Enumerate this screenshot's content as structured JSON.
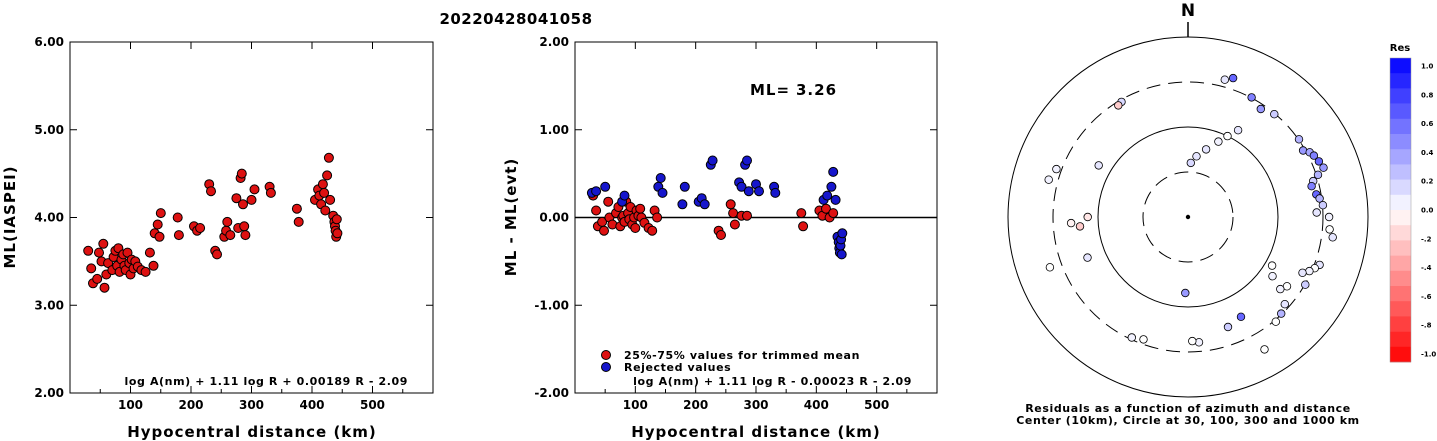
{
  "title": "20220428041058",
  "colors": {
    "used": "#dd1111",
    "rejected": "#1616cc",
    "axis": "#000000"
  },
  "chart_data": [
    {
      "type": "scatter",
      "xlabel": "Hypocentral distance (km)",
      "ylabel": "ML(IASPEI)",
      "xlim": [
        0,
        600
      ],
      "ylim": [
        2.0,
        6.0
      ],
      "xticks": [
        "100",
        "200",
        "300",
        "400",
        "500"
      ],
      "yticks": [
        "2.00",
        "3.00",
        "4.00",
        "5.00",
        "6.00"
      ],
      "formula": "log A(nm) + 1.11 log R + 0.00189 R - 2.09",
      "points": [
        [
          30,
          3.62
        ],
        [
          35,
          3.42
        ],
        [
          38,
          3.25
        ],
        [
          45,
          3.3
        ],
        [
          48,
          3.6
        ],
        [
          52,
          3.5
        ],
        [
          55,
          3.7
        ],
        [
          57,
          3.2
        ],
        [
          60,
          3.35
        ],
        [
          63,
          3.48
        ],
        [
          70,
          3.4
        ],
        [
          72,
          3.55
        ],
        [
          75,
          3.62
        ],
        [
          78,
          3.45
        ],
        [
          80,
          3.65
        ],
        [
          82,
          3.38
        ],
        [
          85,
          3.52
        ],
        [
          88,
          3.58
        ],
        [
          90,
          3.45
        ],
        [
          92,
          3.4
        ],
        [
          95,
          3.6
        ],
        [
          98,
          3.48
        ],
        [
          100,
          3.35
        ],
        [
          102,
          3.52
        ],
        [
          105,
          3.42
        ],
        [
          108,
          3.5
        ],
        [
          112,
          3.44
        ],
        [
          118,
          3.4
        ],
        [
          125,
          3.38
        ],
        [
          132,
          3.6
        ],
        [
          138,
          3.45
        ],
        [
          140,
          3.82
        ],
        [
          145,
          3.92
        ],
        [
          148,
          3.78
        ],
        [
          150,
          4.05
        ],
        [
          178,
          4.0
        ],
        [
          180,
          3.8
        ],
        [
          205,
          3.9
        ],
        [
          210,
          3.85
        ],
        [
          215,
          3.88
        ],
        [
          230,
          4.38
        ],
        [
          233,
          4.3
        ],
        [
          240,
          3.62
        ],
        [
          243,
          3.58
        ],
        [
          255,
          3.78
        ],
        [
          258,
          3.85
        ],
        [
          260,
          3.95
        ],
        [
          265,
          3.8
        ],
        [
          275,
          4.22
        ],
        [
          278,
          3.88
        ],
        [
          282,
          4.45
        ],
        [
          284,
          4.5
        ],
        [
          286,
          4.15
        ],
        [
          288,
          3.9
        ],
        [
          290,
          3.8
        ],
        [
          300,
          4.2
        ],
        [
          305,
          4.32
        ],
        [
          330,
          4.35
        ],
        [
          332,
          4.28
        ],
        [
          375,
          4.1
        ],
        [
          378,
          3.95
        ],
        [
          405,
          4.2
        ],
        [
          410,
          4.32
        ],
        [
          412,
          4.25
        ],
        [
          415,
          4.15
        ],
        [
          418,
          4.38
        ],
        [
          420,
          4.28
        ],
        [
          422,
          4.08
        ],
        [
          425,
          4.48
        ],
        [
          428,
          4.68
        ],
        [
          430,
          4.2
        ],
        [
          435,
          4.02
        ],
        [
          437,
          3.95
        ],
        [
          438,
          3.9
        ],
        [
          439,
          3.85
        ],
        [
          440,
          3.78
        ],
        [
          441,
          3.98
        ],
        [
          442,
          3.82
        ]
      ]
    },
    {
      "type": "scatter",
      "xlabel": "Hypocentral distance (km)",
      "ylabel": "ML - ML(evt)",
      "xlim": [
        0,
        600
      ],
      "ylim": [
        -2.0,
        2.0
      ],
      "xticks": [
        "100",
        "200",
        "300",
        "400",
        "500"
      ],
      "yticks": [
        "-2.00",
        "-1.00",
        "0.00",
        "1.00",
        "2.00"
      ],
      "ml_label": "ML=",
      "ml_value": "3.26",
      "legend": [
        "25%-75% values for trimmed mean",
        "Rejected values"
      ],
      "formula": "log A(nm) + 1.11 log R - 0.00023 R - 2.09",
      "series": [
        {
          "name": "25%-75% values for trimmed mean",
          "points": [
            [
              30,
              0.25
            ],
            [
              35,
              0.08
            ],
            [
              38,
              -0.1
            ],
            [
              45,
              -0.05
            ],
            [
              48,
              -0.15
            ],
            [
              55,
              0.18
            ],
            [
              57,
              0.0
            ],
            [
              62,
              -0.08
            ],
            [
              68,
              0.05
            ],
            [
              72,
              0.12
            ],
            [
              75,
              -0.1
            ],
            [
              78,
              0.0
            ],
            [
              80,
              0.02
            ],
            [
              82,
              -0.05
            ],
            [
              85,
              0.18
            ],
            [
              88,
              0.05
            ],
            [
              90,
              -0.02
            ],
            [
              92,
              0.12
            ],
            [
              95,
              -0.08
            ],
            [
              98,
              0.0
            ],
            [
              100,
              -0.12
            ],
            [
              102,
              0.08
            ],
            [
              105,
              0.02
            ],
            [
              108,
              0.1
            ],
            [
              110,
              0.0
            ],
            [
              115,
              -0.06
            ],
            [
              122,
              -0.12
            ],
            [
              128,
              -0.15
            ],
            [
              132,
              0.08
            ],
            [
              136,
              0.0
            ],
            [
              238,
              -0.15
            ],
            [
              242,
              -0.2
            ],
            [
              258,
              0.15
            ],
            [
              262,
              0.05
            ],
            [
              265,
              -0.08
            ],
            [
              276,
              0.02
            ],
            [
              285,
              0.02
            ],
            [
              375,
              0.05
            ],
            [
              378,
              -0.1
            ],
            [
              405,
              0.08
            ],
            [
              410,
              0.02
            ],
            [
              416,
              0.1
            ],
            [
              422,
              0.0
            ],
            [
              428,
              0.05
            ]
          ]
        },
        {
          "name": "Rejected values",
          "points": [
            [
              28,
              0.28
            ],
            [
              35,
              0.3
            ],
            [
              50,
              0.35
            ],
            [
              78,
              0.18
            ],
            [
              82,
              0.25
            ],
            [
              138,
              0.35
            ],
            [
              142,
              0.45
            ],
            [
              145,
              0.28
            ],
            [
              178,
              0.15
            ],
            [
              182,
              0.35
            ],
            [
              205,
              0.18
            ],
            [
              210,
              0.22
            ],
            [
              215,
              0.15
            ],
            [
              225,
              0.6
            ],
            [
              228,
              0.65
            ],
            [
              272,
              0.4
            ],
            [
              276,
              0.35
            ],
            [
              282,
              0.6
            ],
            [
              285,
              0.65
            ],
            [
              288,
              0.3
            ],
            [
              300,
              0.38
            ],
            [
              305,
              0.3
            ],
            [
              330,
              0.35
            ],
            [
              332,
              0.28
            ],
            [
              412,
              0.2
            ],
            [
              418,
              0.25
            ],
            [
              425,
              0.35
            ],
            [
              428,
              0.52
            ],
            [
              432,
              0.2
            ],
            [
              435,
              -0.22
            ],
            [
              437,
              -0.28
            ],
            [
              438,
              -0.35
            ],
            [
              439,
              -0.4
            ],
            [
              440,
              -0.32
            ],
            [
              441,
              -0.25
            ],
            [
              442,
              -0.42
            ],
            [
              443,
              -0.18
            ]
          ]
        }
      ]
    },
    {
      "type": "scatter",
      "subtype": "polar-residual-map",
      "north_label": "N",
      "caption_line1": "Residuals as a function of azimuth and distance",
      "caption_line2": "Center (10km), Circle at 30, 100, 300 and 1000 km",
      "colorbar_label": "Res",
      "colorbar_ticks": [
        "1.0",
        "0.8",
        "0.6",
        "0.4",
        "0.2",
        "0.0",
        "-.2",
        "-.4",
        "-.6",
        "-.8",
        "-1.0"
      ],
      "points_azimuth_deg_log_distance_km": [
        [
          330,
          300,
          0.15
        ],
        [
          328,
          290,
          -0.2
        ],
        [
          300,
          140,
          0.1
        ],
        [
          290,
          360,
          0.05
        ],
        [
          285,
          400,
          0.05
        ],
        [
          270,
          130,
          -0.1
        ],
        [
          265,
          160,
          -0.2
        ],
        [
          267,
          200,
          -0.05
        ],
        [
          250,
          430,
          0.0
        ],
        [
          248,
          160,
          0.1
        ],
        [
          3,
          40,
          0.15
        ],
        [
          8,
          48,
          0.1
        ],
        [
          15,
          60,
          0.1
        ],
        [
          22,
          80,
          0.05
        ],
        [
          26,
          100,
          0.0
        ],
        [
          30,
          130,
          0.1
        ],
        [
          40,
          310,
          0.2
        ],
        [
          34,
          280,
          0.4
        ],
        [
          28,
          320,
          0.5
        ],
        [
          18,
          420,
          0.6
        ],
        [
          15,
          380,
          0.1
        ],
        [
          55,
          320,
          0.3
        ],
        [
          60,
          300,
          0.4
        ],
        [
          62,
          340,
          0.35
        ],
        [
          64,
          360,
          0.5
        ],
        [
          67,
          380,
          0.6
        ],
        [
          70,
          400,
          0.4
        ],
        [
          72,
          330,
          0.3
        ],
        [
          74,
          280,
          0.2
        ],
        [
          76,
          260,
          0.5
        ],
        [
          80,
          280,
          0.6
        ],
        [
          82,
          300,
          0.3
        ],
        [
          85,
          320,
          0.2
        ],
        [
          88,
          270,
          0.1
        ],
        [
          90,
          370,
          0.05
        ],
        [
          95,
          380,
          0.0
        ],
        [
          98,
          420,
          0.1
        ],
        [
          110,
          360,
          0.1
        ],
        [
          112,
          330,
          0.0
        ],
        [
          114,
          300,
          0.05
        ],
        [
          116,
          260,
          0.1
        ],
        [
          120,
          320,
          0.2
        ],
        [
          125,
          220,
          0.0
        ],
        [
          128,
          200,
          0.05
        ],
        [
          132,
          280,
          0.1
        ],
        [
          136,
          310,
          0.3
        ],
        [
          140,
          330,
          0.0
        ],
        [
          150,
          500,
          0.0
        ],
        [
          152,
          180,
          0.6
        ],
        [
          160,
          200,
          0.2
        ],
        [
          175,
          250,
          0.05
        ],
        [
          178,
          240,
          0.0
        ],
        [
          182,
          70,
          0.4
        ],
        [
          200,
          280,
          0.0
        ],
        [
          205,
          300,
          0.05
        ],
        [
          120,
          120,
          0.0
        ],
        [
          125,
          140,
          0.05
        ]
      ]
    }
  ]
}
